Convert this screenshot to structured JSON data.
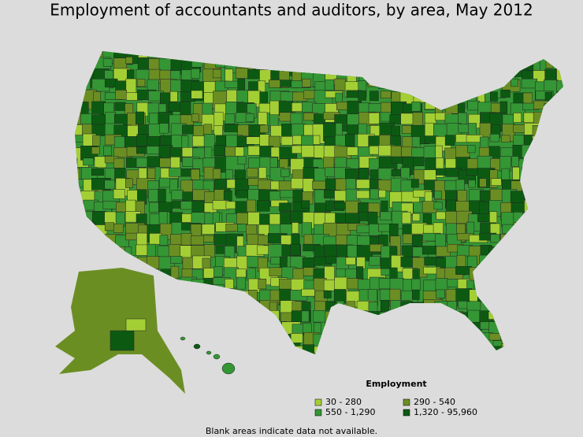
{
  "title": "Employment of accountants and auditors, by area, May 2012",
  "legend": {
    "title": "Employment",
    "items": [
      {
        "label": "30 - 280",
        "color": "#a3cf34"
      },
      {
        "label": "290 - 540",
        "color": "#6b8e23"
      },
      {
        "label": "550 - 1,290",
        "color": "#349634"
      },
      {
        "label": "1,320 - 95,960",
        "color": "#0c5a12"
      }
    ]
  },
  "footnote": "Blank areas indicate data not available."
}
